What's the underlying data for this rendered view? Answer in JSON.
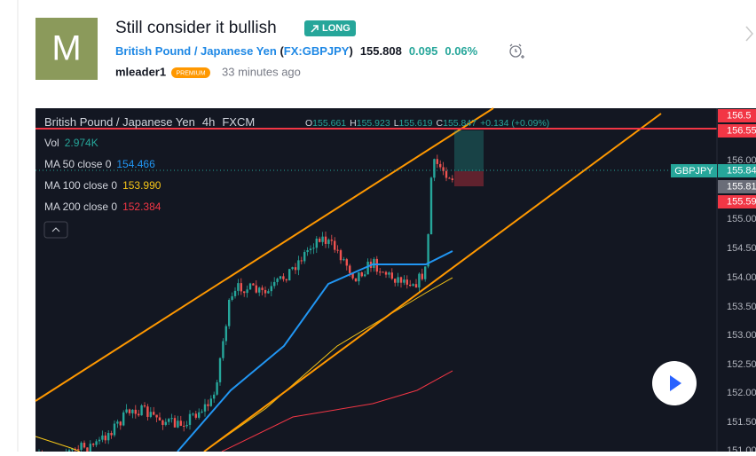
{
  "avatar_letter": "M",
  "idea": {
    "title": "Still consider it bullish",
    "direction": "LONG",
    "symbol_name": "British Pound / Japanese Yen",
    "symbol_code": "FX:GBPJPY",
    "price": "155.808",
    "change": "0.095",
    "change_percent": "0.06%",
    "author": "mleader1",
    "author_badge": "PREMIUM",
    "published": "33 minutes ago"
  },
  "chart": {
    "symbol": "British Pound / Japanese Yen",
    "interval": "4h",
    "exchange": "FXCM",
    "ohlc": [
      {
        "label": "O",
        "value": "155.661"
      },
      {
        "label": "H",
        "value": "155.923"
      },
      {
        "label": "L",
        "value": "155.619"
      },
      {
        "label": "C",
        "value": "155.847"
      }
    ],
    "change": "+0.134 (+0.09%)",
    "indicators": [
      {
        "label": "Vol",
        "value": "2.974K",
        "color": "#26a69a"
      },
      {
        "label": "MA 50 close 0",
        "value": "154.466",
        "color": "#2196f3"
      },
      {
        "label": "MA 100 close 0",
        "value": "153.990",
        "color": "#f5c518"
      },
      {
        "label": "MA 200 close 0",
        "value": "152.384",
        "color": "#f23645"
      }
    ],
    "price_axis": [
      "156.00",
      "155.00",
      "154.50",
      "154.00",
      "153.50",
      "153.00",
      "152.50",
      "152.00",
      "151.50",
      "151.00"
    ],
    "price_flags": [
      {
        "text": "156.5",
        "color": "#f23645"
      },
      {
        "text": "156.55",
        "color": "#f23645"
      },
      {
        "text": "155.84",
        "color": "#26a69a"
      },
      {
        "text": "155.81",
        "color": "#6a6d78"
      },
      {
        "text": "155.59",
        "color": "#f23645"
      }
    ],
    "symbol_flag": "GBPJPY"
  }
}
